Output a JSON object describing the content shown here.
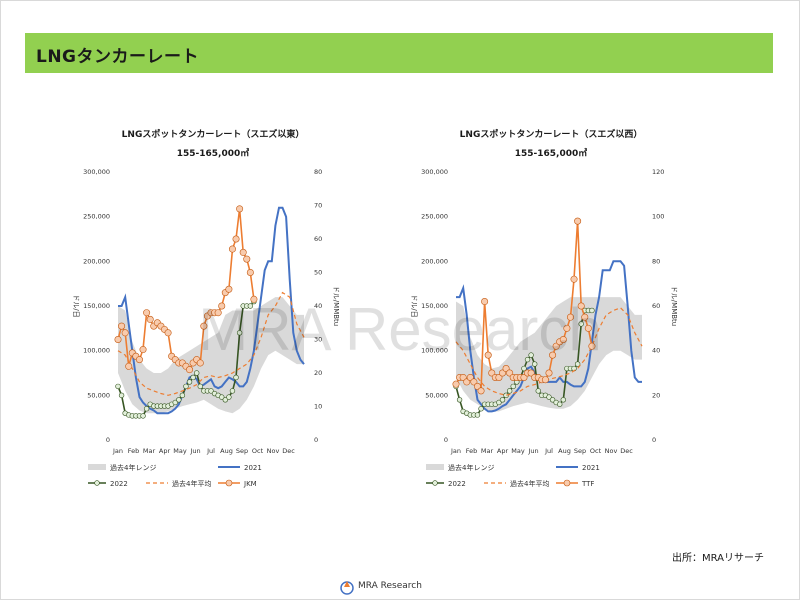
{
  "slide": {
    "title": "LNGタンカーレート",
    "source": "出所：MRAリサーチ",
    "watermark": "MRA Research",
    "logo_text": "MRA Research"
  },
  "colors": {
    "band": "#d9d9d9",
    "y2021": "#4472c4",
    "y2022": "#375623",
    "avg": "#ed7d31",
    "gas": "#ed7d31",
    "gas_marker_fill": "#f8cbad",
    "marker_2022_fill": "#e2efda"
  },
  "chart_data": [
    {
      "type": "line",
      "title": "LNGスポットタンカーレート（スエズ以東）",
      "subtitle": "155-165,000㎥",
      "ylabel": "ドル/日",
      "y2label": "ドル/MMBtu",
      "ylim": [
        0,
        300000
      ],
      "y2lim": [
        0,
        80
      ],
      "yticks": [
        "0",
        "50,000",
        "100,000",
        "150,000",
        "200,000",
        "250,000",
        "300,000"
      ],
      "y2ticks": [
        "0",
        "10",
        "20",
        "30",
        "40",
        "50",
        "60",
        "70",
        "80"
      ],
      "x_months": [
        "Jan",
        "Feb",
        "Mar",
        "Apr",
        "May",
        "Jun",
        "Jul",
        "Aug",
        "Sep",
        "Oct",
        "Nov",
        "Dec"
      ],
      "x_range_weeks": [
        1,
        53
      ],
      "legend": [
        "過去4年レンジ",
        "2021",
        "2022",
        "過去4年平均",
        "JKM"
      ],
      "series": [
        {
          "name": "過去4年レンジ",
          "kind": "band",
          "x": [
            1,
            3,
            5,
            7,
            9,
            11,
            13,
            15,
            17,
            19,
            21,
            23,
            25,
            27,
            29,
            31,
            33,
            35,
            37,
            39,
            41,
            43,
            45,
            47,
            49,
            51,
            53
          ],
          "low": [
            75000,
            55000,
            40000,
            33000,
            30000,
            30000,
            30000,
            32000,
            35000,
            38000,
            40000,
            42000,
            45000,
            40000,
            35000,
            32000,
            30000,
            35000,
            45000,
            60000,
            80000,
            95000,
            100000,
            95000,
            90000,
            85000,
            85000
          ],
          "high": [
            150000,
            145000,
            110000,
            90000,
            80000,
            75000,
            75000,
            80000,
            90000,
            95000,
            100000,
            105000,
            110000,
            115000,
            120000,
            140000,
            145000,
            145000,
            145000,
            145000,
            150000,
            155000,
            160000,
            160000,
            150000,
            140000,
            140000
          ]
        },
        {
          "name": "2021",
          "kind": "line",
          "x": [
            1,
            2,
            3,
            4,
            5,
            6,
            7,
            8,
            9,
            10,
            11,
            12,
            13,
            14,
            15,
            16,
            17,
            18,
            19,
            20,
            21,
            22,
            23,
            24,
            25,
            26,
            27,
            28,
            29,
            30,
            31,
            32,
            33,
            34,
            35,
            36,
            37,
            38,
            39,
            40,
            41,
            42,
            43,
            44,
            45,
            46,
            47,
            48,
            49,
            50,
            51,
            52,
            53
          ],
          "y": [
            150000,
            150000,
            160000,
            130000,
            100000,
            70000,
            48000,
            42000,
            38000,
            35000,
            33000,
            30000,
            30000,
            30000,
            30000,
            32000,
            35000,
            40000,
            50000,
            60000,
            70000,
            72000,
            68000,
            60000,
            62000,
            65000,
            68000,
            60000,
            58000,
            60000,
            65000,
            70000,
            68000,
            65000,
            60000,
            60000,
            65000,
            80000,
            100000,
            130000,
            160000,
            190000,
            200000,
            200000,
            240000,
            260000,
            260000,
            250000,
            180000,
            120000,
            100000,
            90000,
            85000
          ]
        },
        {
          "name": "2022",
          "kind": "line_markers",
          "x": [
            1,
            2,
            3,
            4,
            5,
            6,
            7,
            8,
            9,
            10,
            11,
            12,
            13,
            14,
            15,
            16,
            17,
            18,
            19,
            20,
            21,
            22,
            23,
            24,
            25,
            26,
            27,
            28,
            29,
            30,
            31,
            32,
            33,
            34,
            35,
            36,
            37,
            38,
            39
          ],
          "y": [
            60000,
            50000,
            30000,
            28000,
            27000,
            27000,
            27000,
            27000,
            35000,
            40000,
            38000,
            38000,
            38000,
            38000,
            38000,
            40000,
            42000,
            45000,
            50000,
            60000,
            65000,
            70000,
            75000,
            60000,
            55000,
            55000,
            55000,
            52000,
            50000,
            48000,
            45000,
            48000,
            55000,
            70000,
            120000,
            150000,
            150000,
            150000,
            155000
          ]
        },
        {
          "name": "過去4年平均",
          "kind": "dashed",
          "axis": "left",
          "x": [
            1,
            3,
            5,
            7,
            9,
            11,
            13,
            15,
            17,
            19,
            21,
            23,
            25,
            27,
            29,
            31,
            33,
            35,
            37,
            39,
            41,
            43,
            45,
            47,
            49,
            51,
            53
          ],
          "y": [
            100000,
            95000,
            80000,
            65000,
            58000,
            55000,
            52000,
            50000,
            52000,
            55000,
            58000,
            62000,
            70000,
            72000,
            70000,
            72000,
            75000,
            80000,
            85000,
            95000,
            115000,
            140000,
            150000,
            165000,
            160000,
            130000,
            115000
          ]
        },
        {
          "name": "JKM",
          "kind": "line_markers",
          "axis": "right",
          "x": [
            1,
            2,
            3,
            4,
            5,
            6,
            7,
            8,
            9,
            10,
            11,
            12,
            13,
            14,
            15,
            16,
            17,
            18,
            19,
            20,
            21,
            22,
            23,
            24,
            25,
            26,
            27,
            28,
            29,
            30,
            31,
            32,
            33,
            34,
            35,
            36,
            37,
            38,
            39
          ],
          "y": [
            30,
            34,
            32,
            22,
            26,
            25,
            24,
            27,
            38,
            36,
            34,
            35,
            34,
            33,
            32,
            25,
            24,
            23,
            23,
            22,
            21,
            23,
            24,
            23,
            34,
            37,
            38,
            38,
            38,
            40,
            44,
            45,
            57,
            60,
            69,
            56,
            54,
            50,
            42
          ]
        }
      ]
    },
    {
      "type": "line",
      "title": "LNGスポットタンカーレート（スエズ以西）",
      "subtitle": "155-165,000㎥",
      "ylabel": "ドル/日",
      "y2label": "ドル/MMBtu",
      "ylim": [
        0,
        300000
      ],
      "y2lim": [
        0,
        120
      ],
      "yticks": [
        "0",
        "50,000",
        "100,000",
        "150,000",
        "200,000",
        "250,000",
        "300,000"
      ],
      "y2ticks": [
        "0",
        "20",
        "40",
        "60",
        "80",
        "100",
        "120"
      ],
      "x_months": [
        "Jan",
        "Feb",
        "Mar",
        "Apr",
        "May",
        "Jun",
        "Jul",
        "Aug",
        "Sep",
        "Oct",
        "Nov",
        "Dec"
      ],
      "x_range_weeks": [
        1,
        53
      ],
      "legend": [
        "過去4年レンジ",
        "2021",
        "2022",
        "過去4年平均",
        "TTF"
      ],
      "series": [
        {
          "name": "過去4年レンジ",
          "kind": "band",
          "x": [
            1,
            3,
            5,
            7,
            9,
            11,
            13,
            15,
            17,
            19,
            21,
            23,
            25,
            27,
            29,
            31,
            33,
            35,
            37,
            39,
            41,
            43,
            45,
            47,
            49,
            51,
            53
          ],
          "low": [
            70000,
            55000,
            45000,
            40000,
            35000,
            32000,
            32000,
            35000,
            38000,
            40000,
            42000,
            40000,
            38000,
            36000,
            35000,
            35000,
            38000,
            45000,
            55000,
            70000,
            85000,
            95000,
            100000,
            100000,
            95000,
            90000,
            90000
          ],
          "high": [
            155000,
            150000,
            115000,
            95000,
            85000,
            80000,
            82000,
            90000,
            100000,
            110000,
            115000,
            120000,
            130000,
            140000,
            150000,
            155000,
            160000,
            160000,
            160000,
            160000,
            160000,
            160000,
            160000,
            160000,
            150000,
            140000,
            140000
          ]
        },
        {
          "name": "2021",
          "kind": "line",
          "x": [
            1,
            2,
            3,
            4,
            5,
            6,
            7,
            8,
            9,
            10,
            11,
            12,
            13,
            14,
            15,
            16,
            17,
            18,
            19,
            20,
            21,
            22,
            23,
            24,
            25,
            26,
            27,
            28,
            29,
            30,
            31,
            32,
            33,
            34,
            35,
            36,
            37,
            38,
            39,
            40,
            41,
            42,
            43,
            44,
            45,
            46,
            47,
            48,
            49,
            50,
            51,
            52,
            53
          ],
          "y": [
            160000,
            160000,
            170000,
            140000,
            100000,
            70000,
            45000,
            40000,
            35000,
            32000,
            32000,
            33000,
            35000,
            38000,
            40000,
            45000,
            50000,
            55000,
            60000,
            70000,
            80000,
            82000,
            75000,
            70000,
            65000,
            65000,
            65000,
            65000,
            65000,
            70000,
            65000,
            65000,
            62000,
            60000,
            60000,
            60000,
            65000,
            80000,
            110000,
            140000,
            160000,
            190000,
            190000,
            190000,
            200000,
            200000,
            200000,
            195000,
            150000,
            100000,
            70000,
            65000,
            65000
          ]
        },
        {
          "name": "2022",
          "kind": "line_markers",
          "x": [
            1,
            2,
            3,
            4,
            5,
            6,
            7,
            8,
            9,
            10,
            11,
            12,
            13,
            14,
            15,
            16,
            17,
            18,
            19,
            20,
            21,
            22,
            23,
            24,
            25,
            26,
            27,
            28,
            29,
            30,
            31,
            32,
            33,
            34,
            35,
            36,
            37,
            38,
            39
          ],
          "y": [
            60000,
            45000,
            32000,
            30000,
            28000,
            28000,
            28000,
            35000,
            40000,
            40000,
            40000,
            40000,
            42000,
            45000,
            50000,
            55000,
            60000,
            65000,
            70000,
            80000,
            90000,
            95000,
            85000,
            55000,
            50000,
            50000,
            48000,
            45000,
            42000,
            40000,
            45000,
            80000,
            80000,
            80000,
            85000,
            130000,
            145000,
            145000,
            145000
          ]
        },
        {
          "name": "過去4年平均",
          "kind": "dashed",
          "axis": "left",
          "x": [
            1,
            3,
            5,
            7,
            9,
            11,
            13,
            15,
            17,
            19,
            21,
            23,
            25,
            27,
            29,
            31,
            33,
            35,
            37,
            39,
            41,
            43,
            45,
            47,
            49,
            51,
            53
          ],
          "y": [
            110000,
            100000,
            85000,
            70000,
            60000,
            55000,
            52000,
            50000,
            52000,
            55000,
            60000,
            62000,
            65000,
            68000,
            70000,
            72000,
            75000,
            80000,
            90000,
            105000,
            125000,
            140000,
            145000,
            148000,
            140000,
            120000,
            105000
          ]
        },
        {
          "name": "TTF",
          "kind": "line_markers",
          "axis": "right",
          "x": [
            1,
            2,
            3,
            4,
            5,
            6,
            7,
            8,
            9,
            10,
            11,
            12,
            13,
            14,
            15,
            16,
            17,
            18,
            19,
            20,
            21,
            22,
            23,
            24,
            25,
            26,
            27,
            28,
            29,
            30,
            31,
            32,
            33,
            34,
            35,
            36,
            37,
            38,
            39
          ],
          "y": [
            25,
            28,
            28,
            26,
            28,
            26,
            24,
            22,
            62,
            38,
            30,
            28,
            28,
            30,
            32,
            30,
            28,
            28,
            28,
            28,
            30,
            30,
            28,
            28,
            27,
            27,
            30,
            38,
            42,
            44,
            45,
            50,
            55,
            72,
            98,
            60,
            55,
            50,
            42
          ]
        }
      ]
    }
  ]
}
